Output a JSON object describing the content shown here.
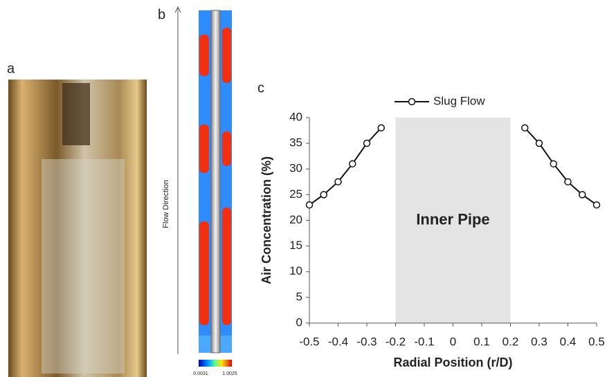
{
  "panels": {
    "a": "a",
    "b": "b",
    "c": "c"
  },
  "flow_label": "Flow Direction",
  "colorbar": {
    "min_label": "0.0031",
    "max_label": "1.0025"
  },
  "chart_data": {
    "type": "line",
    "x": [
      -0.5,
      -0.45,
      -0.4,
      -0.35,
      -0.3,
      -0.25,
      null,
      0.25,
      0.3,
      0.35,
      0.4,
      0.45,
      0.5
    ],
    "series": [
      {
        "name": "Slug Flow",
        "color": "#111111",
        "values": [
          23,
          25,
          27.5,
          31,
          35,
          38,
          null,
          38,
          35,
          31,
          27.5,
          25,
          23
        ]
      }
    ],
    "xlim": [
      -0.5,
      0.5
    ],
    "ylim": [
      0,
      40
    ],
    "xticks": [
      -0.5,
      -0.4,
      -0.3,
      -0.2,
      -0.1,
      0,
      0.1,
      0.2,
      0.3,
      0.4,
      0.5
    ],
    "yticks": [
      0,
      5,
      10,
      15,
      20,
      25,
      30,
      35,
      40
    ],
    "xlabel": "Radial Position (r/D)",
    "ylabel": "Air Concentration (%)",
    "shaded_region": [
      -0.2,
      0.2
    ],
    "shaded_color": "#e4e4e4",
    "annotation": "Inner Pipe",
    "legend": "top"
  }
}
